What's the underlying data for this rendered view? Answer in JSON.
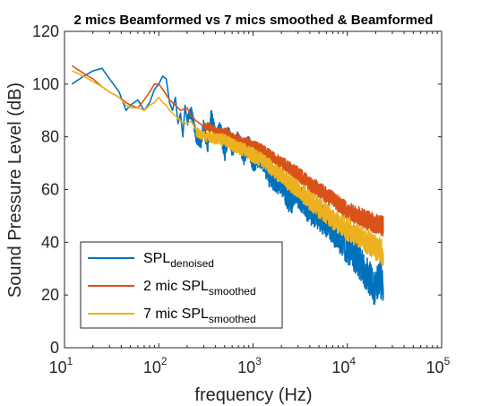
{
  "chart_data": {
    "type": "line",
    "title": "2 mics Beamformed vs 7 mics smoothed & Beamformed",
    "xlabel": "frequency (Hz)",
    "ylabel": "Sound Pressure Level (dB)",
    "x_scale": "log",
    "xlim": [
      10,
      100000
    ],
    "ylim": [
      0,
      120
    ],
    "x_ticks": [
      {
        "base": "10",
        "exp": "1"
      },
      {
        "base": "10",
        "exp": "2"
      },
      {
        "base": "10",
        "exp": "3"
      },
      {
        "base": "10",
        "exp": "4"
      },
      {
        "base": "10",
        "exp": "5"
      }
    ],
    "y_ticks": [
      "0",
      "20",
      "40",
      "60",
      "80",
      "100",
      "120"
    ],
    "grid": false,
    "legend_position": "bottom-left",
    "series": [
      {
        "name": "SPL",
        "name_sub": "denoised",
        "color": "#0072BD",
        "x": [
          12,
          16,
          20,
          25,
          30,
          38,
          45,
          50,
          60,
          70,
          80,
          90,
          100,
          110,
          120,
          130,
          140,
          150,
          160,
          170,
          180,
          190,
          200,
          220,
          250,
          280,
          300,
          330,
          360,
          400,
          450,
          500,
          550,
          600,
          700,
          800,
          900,
          1000,
          1200,
          1500,
          2000,
          2500,
          3000,
          4000,
          5000,
          6000,
          7000,
          8000,
          10000,
          12000,
          15000,
          18000,
          20000,
          22000,
          24000
        ],
        "y": [
          100,
          103,
          105,
          106,
          102,
          97,
          90,
          92,
          94,
          90,
          93,
          98,
          100,
          103,
          102,
          93,
          90,
          95,
          85,
          89,
          80,
          92,
          86,
          90,
          80,
          78,
          84,
          76,
          88,
          80,
          83,
          74,
          82,
          76,
          79,
          73,
          77,
          70,
          72,
          65,
          62,
          55,
          58,
          52,
          50,
          47,
          45,
          42,
          38,
          35,
          30,
          25,
          22,
          28,
          21
        ],
        "dense_from": 200,
        "dense_to": 24000,
        "dense_amp": 7
      },
      {
        "name": "2 mic SPL",
        "name_sub": "smoothed",
        "color": "#D95319",
        "x": [
          12,
          16,
          20,
          25,
          30,
          38,
          45,
          50,
          60,
          70,
          80,
          90,
          100,
          110,
          120,
          130,
          150,
          170,
          200,
          220,
          250,
          300,
          350,
          400,
          500,
          600,
          800,
          1000,
          1500,
          2000,
          3000,
          4000,
          5000,
          7000,
          10000,
          15000,
          20000,
          24000
        ],
        "y": [
          107,
          104,
          102,
          99,
          97,
          95,
          93,
          92,
          91,
          94,
          97,
          100,
          100,
          98,
          96,
          94,
          92,
          90,
          91,
          88,
          86,
          84,
          84,
          82,
          82,
          80,
          78,
          77,
          73,
          70,
          66,
          62,
          60,
          56,
          52,
          49,
          47,
          46
        ],
        "dense_from": 300,
        "dense_to": 24000,
        "dense_amp": 4
      },
      {
        "name": "7 mic SPL",
        "name_sub": "smoothed",
        "color": "#EDB120",
        "x": [
          12,
          16,
          20,
          25,
          30,
          38,
          45,
          50,
          60,
          70,
          80,
          90,
          100,
          110,
          120,
          130,
          150,
          170,
          200,
          220,
          250,
          300,
          350,
          400,
          500,
          600,
          800,
          1000,
          1500,
          2000,
          3000,
          4000,
          5000,
          7000,
          10000,
          15000,
          20000,
          24000
        ],
        "y": [
          105,
          103,
          101,
          99,
          97,
          95,
          92,
          91,
          91,
          90,
          92,
          93,
          95,
          93,
          92,
          90,
          88,
          86,
          85,
          86,
          82,
          80,
          80,
          79,
          79,
          77,
          75,
          73,
          69,
          65,
          60,
          56,
          53,
          49,
          45,
          41,
          38,
          36
        ],
        "dense_from": 250,
        "dense_to": 24000,
        "dense_amp": 5
      }
    ]
  }
}
